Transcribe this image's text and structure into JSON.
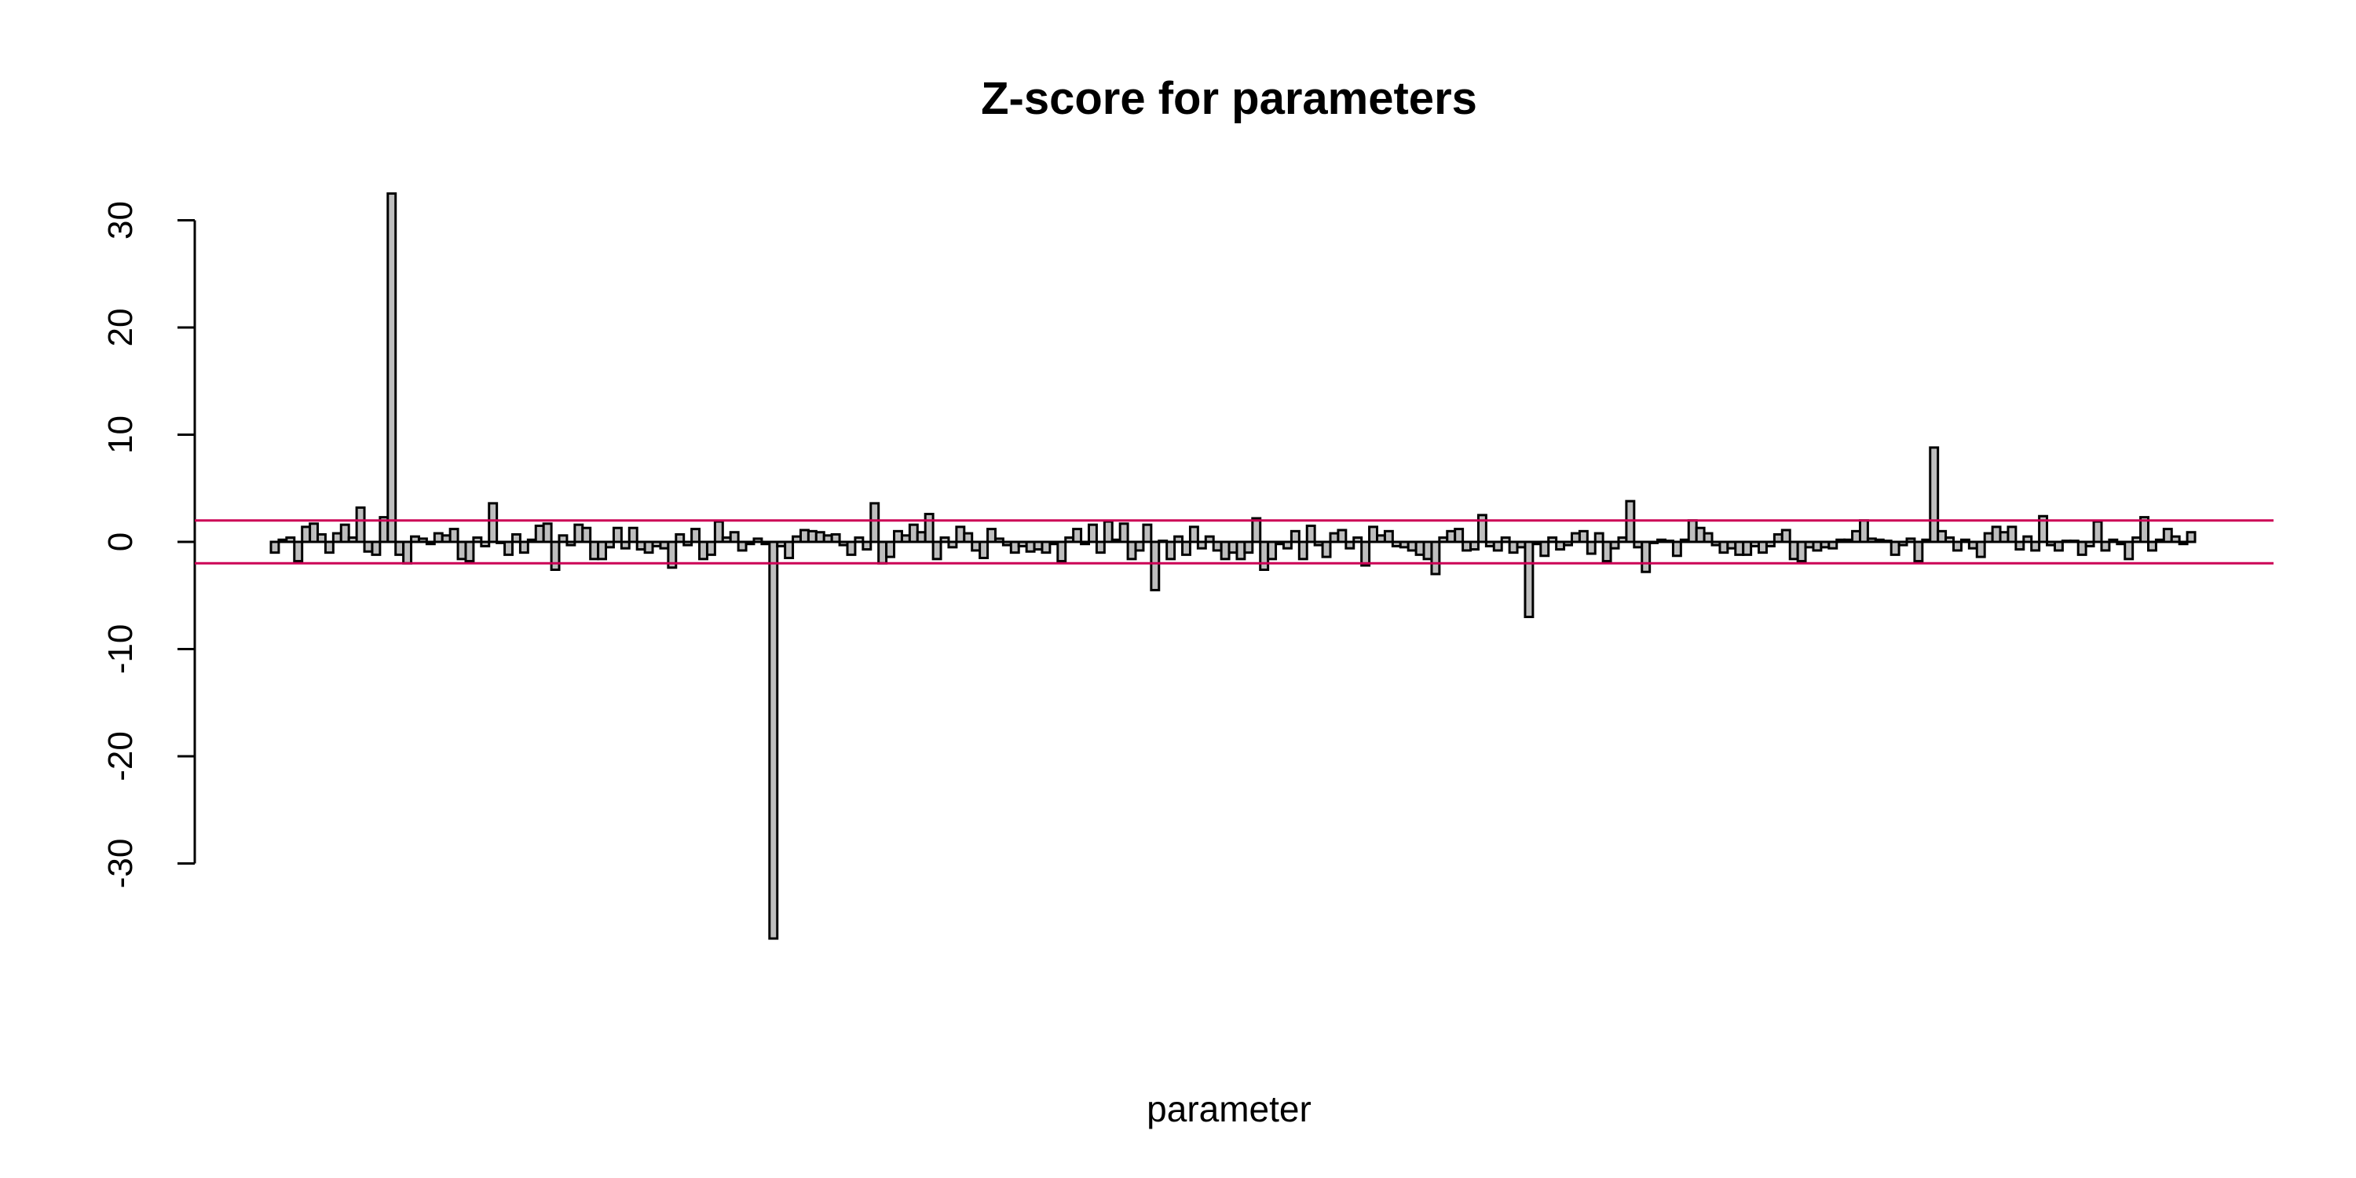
{
  "chart_data": {
    "type": "bar",
    "title": "Z-score for parameters",
    "xlabel": "parameter",
    "ylabel": "",
    "ylim": [
      -38,
      33
    ],
    "y_ticks": [
      -30,
      -20,
      -10,
      0,
      10,
      20,
      30
    ],
    "grid": false,
    "reference_lines": [
      2,
      -2
    ],
    "colors": {
      "bar_fill": "#bebebe",
      "bar_border": "#000000",
      "reference_line": "#cc0055"
    },
    "values": [
      -1.0,
      0.2,
      0.4,
      -1.8,
      1.4,
      1.7,
      0.7,
      -1.0,
      0.8,
      1.6,
      0.4,
      3.2,
      -0.9,
      -1.2,
      2.3,
      32.5,
      -1.2,
      -2.0,
      0.5,
      0.3,
      -0.2,
      0.8,
      0.6,
      1.2,
      -1.6,
      -1.8,
      0.4,
      -0.4,
      3.6,
      -0.1,
      -1.2,
      0.7,
      -1.0,
      0.2,
      1.5,
      1.7,
      -2.6,
      0.6,
      -0.3,
      1.6,
      1.3,
      -1.6,
      -1.6,
      -0.5,
      1.3,
      -0.6,
      1.3,
      -0.7,
      -1.0,
      -0.4,
      -0.6,
      -2.4,
      0.7,
      -0.3,
      1.2,
      -1.6,
      -1.2,
      1.9,
      0.4,
      0.9,
      -0.8,
      -0.2,
      0.3,
      -0.2,
      -37.0,
      -0.4,
      -1.5,
      0.5,
      1.1,
      1.0,
      0.9,
      0.6,
      0.7,
      -0.3,
      -1.2,
      0.4,
      -0.7,
      3.6,
      -2.0,
      -1.4,
      1.0,
      0.6,
      1.6,
      0.9,
      2.6,
      -1.6,
      0.4,
      -0.5,
      1.4,
      0.8,
      -0.8,
      -1.5,
      1.2,
      0.3,
      -0.3,
      -1.0,
      -0.4,
      -0.9,
      -0.7,
      -1.0,
      -0.2,
      -1.8,
      0.4,
      1.2,
      -0.2,
      1.6,
      -1.0,
      1.9,
      0.2,
      1.7,
      -1.6,
      -0.8,
      1.6,
      -4.5,
      0.1,
      -1.6,
      0.5,
      -1.2,
      1.4,
      -0.6,
      0.5,
      -0.8,
      -1.6,
      -1.0,
      -1.6,
      -1.0,
      2.2,
      -2.6,
      -1.6,
      -0.2,
      -0.6,
      1.0,
      -1.6,
      1.5,
      -0.3,
      -1.4,
      0.8,
      1.1,
      -0.6,
      0.4,
      -2.2,
      1.4,
      0.6,
      1.0,
      -0.4,
      -0.5,
      -0.8,
      -1.2,
      -1.6,
      -3.0,
      0.4,
      1.0,
      1.2,
      -0.8,
      -0.7,
      2.5,
      -0.4,
      -0.8,
      0.4,
      -1.0,
      -0.5,
      -7.0,
      -0.2,
      -1.3,
      0.4,
      -0.7,
      -0.3,
      0.8,
      1.0,
      -1.1,
      0.8,
      -1.8,
      -0.6,
      0.4,
      3.8,
      -0.5,
      -2.8,
      -0.1,
      0.2,
      0.1,
      -1.3,
      0.2,
      2.0,
      1.3,
      0.8,
      -0.3,
      -1.0,
      -0.6,
      -1.2,
      -1.2,
      -0.4,
      -1.0,
      -0.4,
      0.7,
      1.1,
      -1.6,
      -1.8,
      -0.5,
      -0.8,
      -0.5,
      -0.6,
      0.2,
      0.2,
      1.0,
      2.0,
      0.3,
      0.2,
      0.1,
      -1.2,
      -0.3,
      0.3,
      -1.8,
      0.2,
      8.8,
      1.0,
      0.4,
      -0.8,
      0.2,
      -0.6,
      -1.4,
      0.8,
      1.4,
      0.9,
      1.4,
      -0.7,
      0.5,
      -0.8,
      2.4,
      -0.3,
      -0.8,
      0.1,
      0.1,
      -1.2,
      -0.4,
      1.9,
      -0.8,
      0.2,
      -0.2,
      -1.6,
      0.4,
      2.3,
      -0.8,
      0.2,
      1.2,
      0.5,
      -0.2,
      0.9
    ]
  }
}
